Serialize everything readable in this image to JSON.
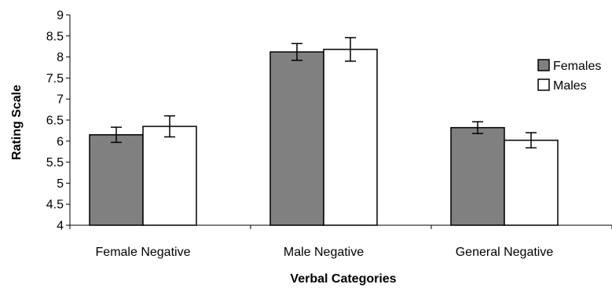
{
  "chart_data": {
    "type": "bar",
    "title": "",
    "xlabel": "Verbal Categories",
    "ylabel": "Rating Scale",
    "ylim": [
      4,
      9
    ],
    "yticks": [
      "4",
      "4.5",
      "5",
      "5.5",
      "6",
      "6.5",
      "7",
      "7.5",
      "8",
      "8.5",
      "9"
    ],
    "categories": [
      "Female Negative",
      "Male Negative",
      "General Negative"
    ],
    "series": [
      {
        "name": "Females",
        "color": "#808080",
        "values": [
          6.15,
          8.12,
          6.32
        ],
        "errors": [
          0.18,
          0.2,
          0.14
        ]
      },
      {
        "name": "Males",
        "color": "#ffffff",
        "values": [
          6.35,
          8.18,
          6.02
        ],
        "errors": [
          0.25,
          0.28,
          0.18
        ]
      }
    ],
    "legend": {
      "position": "right"
    },
    "grid": false
  }
}
